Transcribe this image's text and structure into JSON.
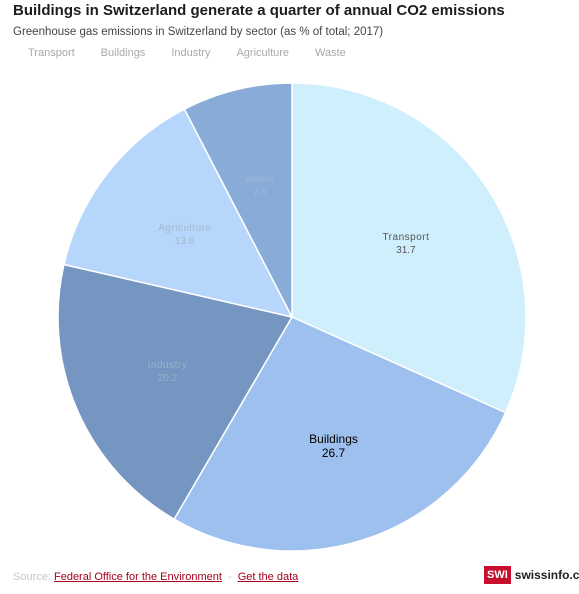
{
  "header": {
    "title": "Buildings in Switzerland generate a quarter of annual CO2 emissions",
    "subtitle": "Greenhouse gas emissions in Switzerland by sector (as % of total; 2017)"
  },
  "legend": {
    "items": [
      {
        "label": "Transport"
      },
      {
        "label": "Buildings"
      },
      {
        "label": "Industry"
      },
      {
        "label": "Agriculture"
      },
      {
        "label": "Waste"
      }
    ]
  },
  "footer": {
    "source_label": "Source:",
    "source_link": "Federal Office for the Environment",
    "separator": "-",
    "data_link": "Get the data"
  },
  "brand": {
    "badge": "SWI",
    "name": "swissinfo.ch"
  },
  "chart_data": {
    "type": "pie",
    "title": "Buildings in Switzerland generate a quarter of annual CO2 emissions",
    "subtitle": "Greenhouse gas emissions in Switzerland by sector (as % of total; 2017)",
    "legend_position": "top-left",
    "slices": [
      {
        "label": "Transport",
        "value": 31.7,
        "color": "#d0effd",
        "label_color": "#555555"
      },
      {
        "label": "Buildings",
        "value": 26.7,
        "color": "#9ec0ee",
        "label_color": "#000000"
      },
      {
        "label": "Industry",
        "value": 20.2,
        "color": "#7596c0",
        "label_color": "#9fb0c6"
      },
      {
        "label": "Agriculture",
        "value": 13.8,
        "color": "#b7d6fb",
        "label_color": "#a6b8cc"
      },
      {
        "label": "Waste",
        "value": 7.6,
        "color": "#88abd8",
        "label_color": "#9db7d6"
      }
    ]
  }
}
